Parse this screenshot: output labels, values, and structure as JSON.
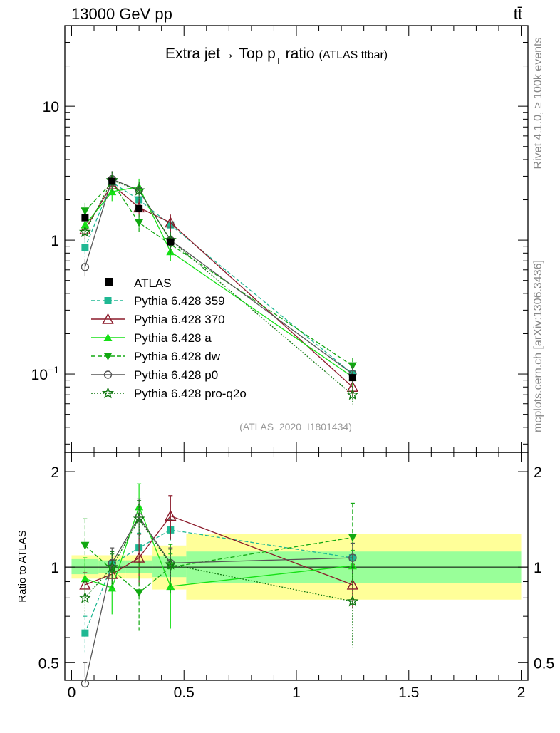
{
  "header": {
    "left": "13000 GeV pp",
    "right": "tt̄"
  },
  "side_labels": {
    "rivet": "Rivet 4.1.0, ≥ 100k events",
    "mcplots": "mcplots.cern.ch [arXiv:1306.3436]"
  },
  "chart_data": {
    "type": "line",
    "title": "Extra jet→ Top p",
    "title_sub": "T",
    "title_tail": " ratio",
    "title_small": "(ATLAS ttbar)",
    "watermark": "(ATLAS_2020_I1801434)",
    "xlabel": "",
    "xlim": [
      -0.03,
      2.03
    ],
    "x_ticks": [
      "0",
      "0.5",
      "1",
      "1.5",
      "2"
    ],
    "x_tick_values": [
      0,
      0.5,
      1,
      1.5,
      2
    ],
    "main": {
      "ylabel": "",
      "yscale": "log",
      "ylim": [
        0.026,
        40
      ],
      "y_tick_labels": [
        {
          "value": 10,
          "base": "10",
          "exp": ""
        },
        {
          "value": 1,
          "base": "1",
          "exp": ""
        },
        {
          "value": 0.1,
          "base": "10",
          "exp": "−1"
        }
      ]
    },
    "ratio": {
      "ylabel": "Ratio to ATLAS",
      "yscale": "log",
      "ylim": [
        0.44,
        2.3
      ],
      "y_tick_labels": [
        {
          "value": 2,
          "label": "2"
        },
        {
          "value": 1,
          "label": "1"
        },
        {
          "value": 0.5,
          "label": "0.5"
        }
      ],
      "band_inner": [
        {
          "x0": 0,
          "x1": 0.12,
          "lo": 0.95,
          "hi": 1.06
        },
        {
          "x0": 0.12,
          "x1": 0.24,
          "lo": 0.96,
          "hi": 1.05
        },
        {
          "x0": 0.24,
          "x1": 0.36,
          "lo": 0.96,
          "hi": 1.05
        },
        {
          "x0": 0.36,
          "x1": 0.51,
          "lo": 0.93,
          "hi": 1.08
        },
        {
          "x0": 0.51,
          "x1": 2.0,
          "lo": 0.89,
          "hi": 1.12
        }
      ],
      "band_outer": [
        {
          "x0": 0,
          "x1": 0.12,
          "lo": 0.92,
          "hi": 1.09
        },
        {
          "x0": 0.12,
          "x1": 0.24,
          "lo": 0.92,
          "hi": 1.09
        },
        {
          "x0": 0.24,
          "x1": 0.36,
          "lo": 0.92,
          "hi": 1.09
        },
        {
          "x0": 0.36,
          "x1": 0.51,
          "lo": 0.85,
          "hi": 1.17
        },
        {
          "x0": 0.51,
          "x1": 2.0,
          "lo": 0.79,
          "hi": 1.27
        }
      ]
    },
    "x": [
      0.06,
      0.18,
      0.3,
      0.44,
      1.25
    ],
    "data": {
      "name": "ATLAS",
      "values": [
        1.47,
        2.75,
        1.72,
        0.97,
        0.094
      ]
    },
    "series": [
      {
        "name": "Pythia 6.428 359",
        "color": "#1fb893",
        "dash": "5,3",
        "marker": "square",
        "values": [
          0.88,
          2.7,
          2.0,
          1.3,
          0.1
        ],
        "ratio": [
          0.62,
          1.02,
          1.15,
          1.31,
          1.07
        ],
        "ratio_err": [
          0.08,
          0.1,
          0.13,
          0.1,
          0.12
        ]
      },
      {
        "name": "Pythia 6.428 370",
        "color": "#8b1a2a",
        "dash": "",
        "marker": "triangle-open",
        "values": [
          1.2,
          2.6,
          1.75,
          1.35,
          0.08
        ],
        "ratio": [
          0.88,
          0.95,
          1.07,
          1.45,
          0.88
        ],
        "ratio_err": [
          0.08,
          0.1,
          0.2,
          0.23,
          0.14
        ]
      },
      {
        "name": "Pythia 6.428 a",
        "color": "#16e016",
        "dash": "",
        "marker": "triangle",
        "values": [
          1.3,
          2.3,
          2.5,
          0.82,
          0.095
        ],
        "ratio": [
          0.92,
          0.86,
          1.55,
          0.87,
          1.01
        ],
        "ratio_err": [
          0.15,
          0.15,
          0.28,
          0.23,
          0.12
        ]
      },
      {
        "name": "Pythia 6.428 dw",
        "color": "#11a811",
        "dash": "6,3",
        "marker": "triangle-down",
        "values": [
          1.65,
          2.7,
          1.35,
          0.93,
          0.115
        ],
        "ratio": [
          1.17,
          0.98,
          0.83,
          1.0,
          1.24
        ],
        "ratio_err": [
          0.25,
          0.12,
          0.2,
          0.18,
          0.35
        ]
      },
      {
        "name": "Pythia 6.428 p0",
        "color": "#555555",
        "dash": "",
        "marker": "circle-open",
        "values": [
          0.63,
          2.85,
          2.35,
          1.0,
          0.1
        ],
        "ratio": [
          0.43,
          1.03,
          1.44,
          1.03,
          1.07
        ],
        "ratio_err": [
          0.07,
          0.12,
          0.2,
          0.12,
          0.12
        ]
      },
      {
        "name": "Pythia 6.428 pro-q2o",
        "color": "#117711",
        "dash": "2,2",
        "marker": "star",
        "values": [
          1.15,
          2.8,
          2.35,
          1.0,
          0.07
        ],
        "ratio": [
          0.8,
          1.0,
          1.42,
          1.02,
          0.78
        ],
        "ratio_err": [
          0.1,
          0.12,
          0.2,
          0.12,
          0.22
        ]
      }
    ]
  }
}
